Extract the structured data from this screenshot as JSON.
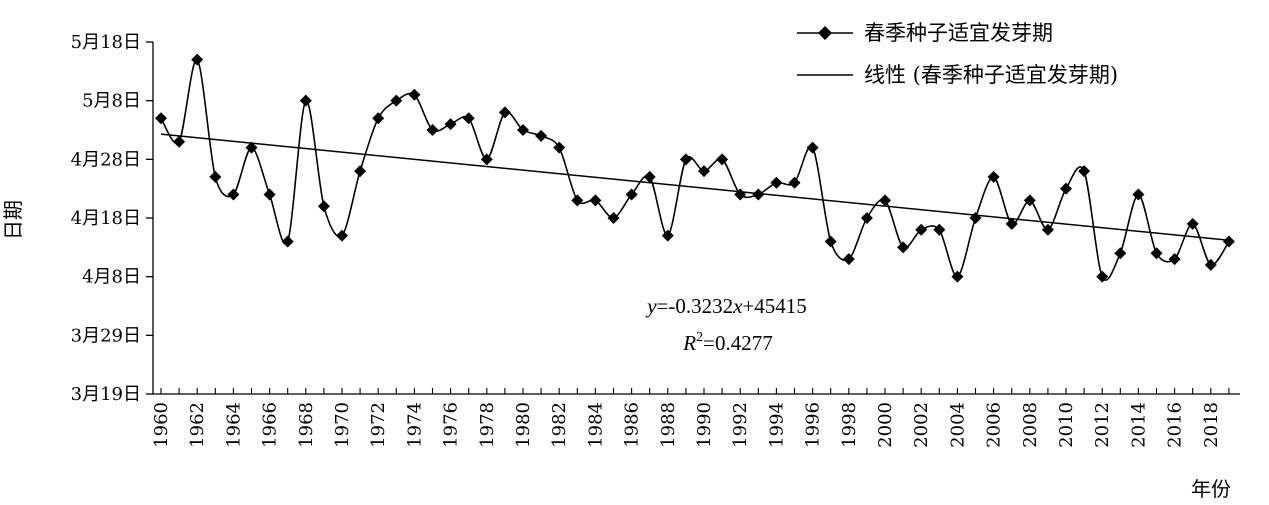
{
  "chart_data": {
    "type": "line",
    "xlabel": "年份",
    "ylabel": "日期",
    "xlim": [
      1960,
      2019
    ],
    "ylim": [
      0,
      60
    ],
    "x_tick_labels": [
      "1960",
      "1962",
      "1964",
      "1966",
      "1968",
      "1970",
      "1972",
      "1974",
      "1976",
      "1978",
      "1980",
      "1982",
      "1984",
      "1986",
      "1988",
      "1990",
      "1992",
      "1994",
      "1996",
      "1998",
      "2000",
      "2002",
      "2004",
      "2006",
      "2008",
      "2010",
      "2012",
      "2014",
      "2016",
      "2018"
    ],
    "y_ticks": [
      {
        "value": 0,
        "label": "3月19日"
      },
      {
        "value": 10,
        "label": "3月29日"
      },
      {
        "value": 20,
        "label": "4月8日"
      },
      {
        "value": 30,
        "label": "4月18日"
      },
      {
        "value": 40,
        "label": "4月28日"
      },
      {
        "value": 50,
        "label": "5月8日"
      },
      {
        "value": 60,
        "label": "5月18日"
      }
    ],
    "y_unit_note": "days after 3月19日",
    "series": [
      {
        "name": "春季种子适宜发芽期",
        "marker": "diamond",
        "smooth": true,
        "color": "#000000",
        "x": [
          1960,
          1961,
          1962,
          1963,
          1964,
          1965,
          1966,
          1967,
          1968,
          1969,
          1970,
          1971,
          1972,
          1973,
          1974,
          1975,
          1976,
          1977,
          1978,
          1979,
          1980,
          1981,
          1982,
          1983,
          1984,
          1985,
          1986,
          1987,
          1988,
          1989,
          1990,
          1991,
          1992,
          1993,
          1994,
          1995,
          1996,
          1997,
          1998,
          1999,
          2000,
          2001,
          2002,
          2003,
          2004,
          2005,
          2006,
          2007,
          2008,
          2009,
          2010,
          2011,
          2012,
          2013,
          2014,
          2015,
          2016,
          2017,
          2018,
          2019
        ],
        "y": [
          47,
          43,
          57,
          37,
          34,
          42,
          34,
          26,
          50,
          32,
          27,
          38,
          47,
          50,
          51,
          45,
          46,
          47,
          40,
          48,
          45,
          44,
          42,
          33,
          33,
          30,
          34,
          37,
          27,
          40,
          38,
          40,
          34,
          34,
          36,
          36,
          42,
          26,
          23,
          30,
          33,
          25,
          28,
          28,
          20,
          30,
          37,
          29,
          33,
          28,
          35,
          38,
          20,
          24,
          34,
          24,
          23,
          29,
          22,
          26
        ]
      },
      {
        "name": "线性 (春季种子适宜发芽期)",
        "type": "trendline",
        "color": "#000000",
        "x": [
          1960,
          2019
        ],
        "y": [
          44.3,
          26.2
        ]
      }
    ],
    "annotations": {
      "equation": {
        "y_var": "y",
        "eq_mid": "=-0.3232",
        "x_var": "x",
        "eq_tail": "+45415"
      },
      "r2": {
        "r_var": "R",
        "sup": "2",
        "value": "=0.4277"
      }
    },
    "legend_position": "top-right",
    "grid": false
  }
}
